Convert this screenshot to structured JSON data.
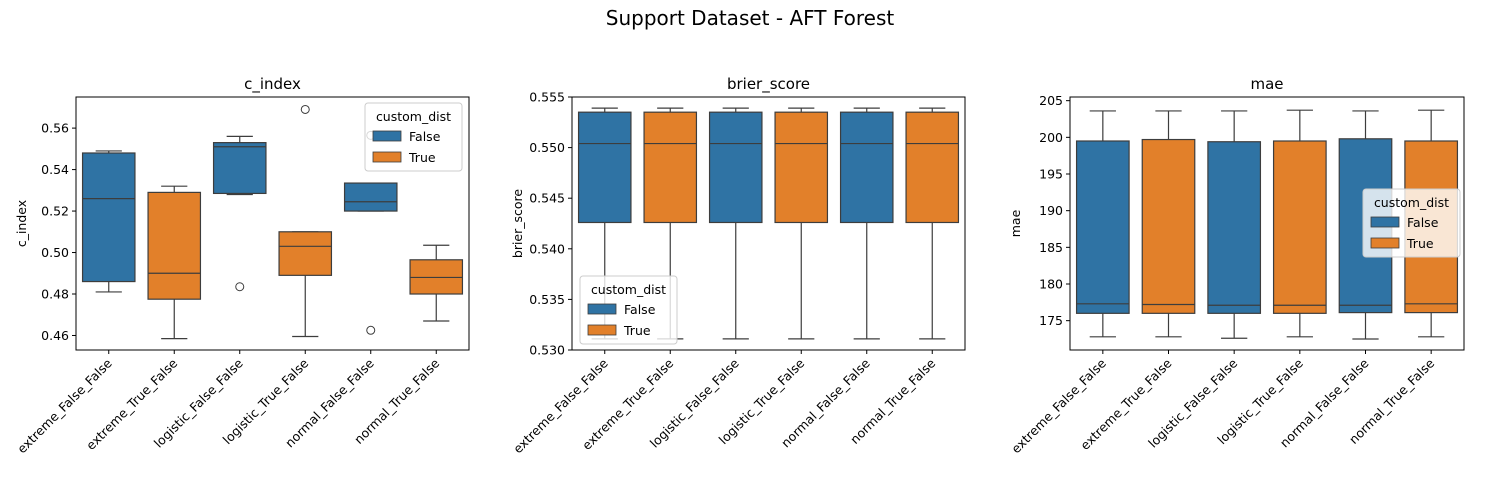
{
  "suptitle": "Support Dataset - AFT Forest",
  "colors": {
    "False": "#2f73a4",
    "True": "#e2802a"
  },
  "chart_data": [
    {
      "type": "box",
      "title": "c_index",
      "xlabel": "",
      "ylabel": "c_index",
      "ylim": [
        0.453,
        0.575
      ],
      "yticks": [
        0.46,
        0.48,
        0.5,
        0.52,
        0.54,
        0.56
      ],
      "ytick_labels": [
        "0.46",
        "0.48",
        "0.50",
        "0.52",
        "0.54",
        "0.56"
      ],
      "categories": [
        "extreme_False_False",
        "extreme_True_False",
        "logistic_False_False",
        "logistic_True_False",
        "normal_False_False",
        "normal_True_False"
      ],
      "legend": {
        "title": "custom_dist",
        "entries": [
          "False",
          "True"
        ],
        "loc": "upper right"
      },
      "boxes": [
        {
          "category": "extreme_False_False",
          "hue": "False",
          "whislo": 0.481,
          "q1": 0.486,
          "med": 0.526,
          "q3": 0.548,
          "whishi": 0.549,
          "fliers": []
        },
        {
          "category": "extreme_True_False",
          "hue": "True",
          "whislo": 0.4585,
          "q1": 0.4775,
          "med": 0.49,
          "q3": 0.529,
          "whishi": 0.532,
          "fliers": []
        },
        {
          "category": "logistic_False_False",
          "hue": "False",
          "whislo": 0.528,
          "q1": 0.5285,
          "med": 0.551,
          "q3": 0.553,
          "whishi": 0.556,
          "fliers": [
            0.4835
          ]
        },
        {
          "category": "logistic_True_False",
          "hue": "True",
          "whislo": 0.4595,
          "q1": 0.489,
          "med": 0.503,
          "q3": 0.51,
          "whishi": 0.51,
          "fliers": [
            0.569
          ]
        },
        {
          "category": "normal_False_False",
          "hue": "False",
          "whislo": 0.52,
          "q1": 0.52,
          "med": 0.5245,
          "q3": 0.5335,
          "whishi": 0.5335,
          "fliers": [
            0.5565,
            0.4625
          ]
        },
        {
          "category": "normal_True_False",
          "hue": "True",
          "whislo": 0.467,
          "q1": 0.48,
          "med": 0.488,
          "q3": 0.4965,
          "whishi": 0.5035,
          "fliers": []
        }
      ]
    },
    {
      "type": "box",
      "title": "brier_score",
      "xlabel": "",
      "ylabel": "brier_score",
      "ylim": [
        0.53,
        0.555
      ],
      "yticks": [
        0.53,
        0.535,
        0.54,
        0.545,
        0.55,
        0.555
      ],
      "ytick_labels": [
        "0.530",
        "0.535",
        "0.540",
        "0.545",
        "0.550",
        "0.555"
      ],
      "categories": [
        "extreme_False_False",
        "extreme_True_False",
        "logistic_False_False",
        "logistic_True_False",
        "normal_False_False",
        "normal_True_False"
      ],
      "legend": {
        "title": "custom_dist",
        "entries": [
          "False",
          "True"
        ],
        "loc": "lower left"
      },
      "boxes": [
        {
          "category": "extreme_False_False",
          "hue": "False",
          "whislo": 0.5311,
          "q1": 0.5426,
          "med": 0.5504,
          "q3": 0.5535,
          "whishi": 0.5539,
          "fliers": []
        },
        {
          "category": "extreme_True_False",
          "hue": "True",
          "whislo": 0.5311,
          "q1": 0.5426,
          "med": 0.5504,
          "q3": 0.5535,
          "whishi": 0.5539,
          "fliers": []
        },
        {
          "category": "logistic_False_False",
          "hue": "False",
          "whislo": 0.5311,
          "q1": 0.5426,
          "med": 0.5504,
          "q3": 0.5535,
          "whishi": 0.5539,
          "fliers": []
        },
        {
          "category": "logistic_True_False",
          "hue": "True",
          "whislo": 0.5311,
          "q1": 0.5426,
          "med": 0.5504,
          "q3": 0.5535,
          "whishi": 0.5539,
          "fliers": []
        },
        {
          "category": "normal_False_False",
          "hue": "False",
          "whislo": 0.5311,
          "q1": 0.5426,
          "med": 0.5504,
          "q3": 0.5535,
          "whishi": 0.5539,
          "fliers": []
        },
        {
          "category": "normal_True_False",
          "hue": "True",
          "whislo": 0.5311,
          "q1": 0.5426,
          "med": 0.5504,
          "q3": 0.5535,
          "whishi": 0.5539,
          "fliers": []
        }
      ]
    },
    {
      "type": "box",
      "title": "mae",
      "xlabel": "",
      "ylabel": "mae",
      "ylim": [
        171.0,
        205.5
      ],
      "yticks": [
        175,
        180,
        185,
        190,
        195,
        200,
        205
      ],
      "ytick_labels": [
        "175",
        "180",
        "185",
        "190",
        "195",
        "200",
        "205"
      ],
      "categories": [
        "extreme_False_False",
        "extreme_True_False",
        "logistic_False_False",
        "logistic_True_False",
        "normal_False_False",
        "normal_True_False"
      ],
      "legend": {
        "title": "custom_dist",
        "entries": [
          "False",
          "True"
        ],
        "loc": "center right"
      },
      "boxes": [
        {
          "category": "extreme_False_False",
          "hue": "False",
          "whislo": 172.8,
          "q1": 176.0,
          "med": 177.3,
          "q3": 199.5,
          "whishi": 203.6,
          "fliers": []
        },
        {
          "category": "extreme_True_False",
          "hue": "True",
          "whislo": 172.8,
          "q1": 176.0,
          "med": 177.2,
          "q3": 199.7,
          "whishi": 203.6,
          "fliers": []
        },
        {
          "category": "logistic_False_False",
          "hue": "False",
          "whislo": 172.6,
          "q1": 176.0,
          "med": 177.1,
          "q3": 199.4,
          "whishi": 203.6,
          "fliers": []
        },
        {
          "category": "logistic_True_False",
          "hue": "True",
          "whislo": 172.8,
          "q1": 176.0,
          "med": 177.1,
          "q3": 199.5,
          "whishi": 203.7,
          "fliers": []
        },
        {
          "category": "normal_False_False",
          "hue": "False",
          "whislo": 172.5,
          "q1": 176.1,
          "med": 177.1,
          "q3": 199.8,
          "whishi": 203.6,
          "fliers": []
        },
        {
          "category": "normal_True_False",
          "hue": "True",
          "whislo": 172.8,
          "q1": 176.1,
          "med": 177.3,
          "q3": 199.5,
          "whishi": 203.7,
          "fliers": []
        }
      ]
    }
  ]
}
